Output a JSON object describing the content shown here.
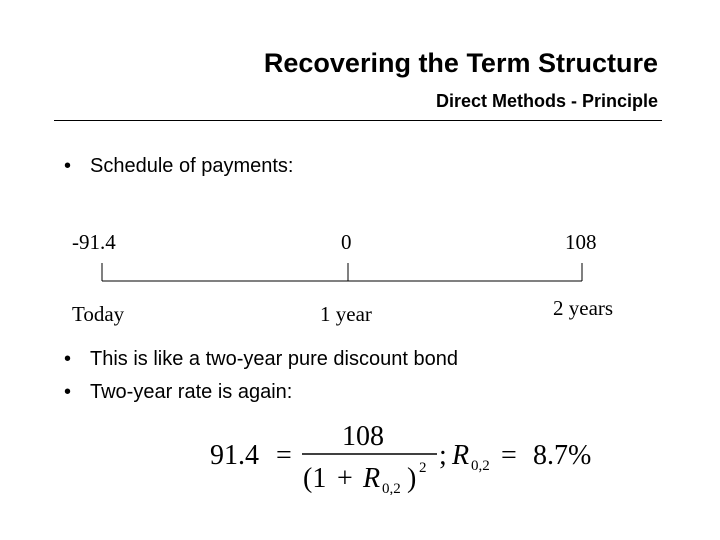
{
  "header": {
    "title": "Recovering the Term Structure",
    "subtitle": "Direct Methods - Principle"
  },
  "bullets_top": [
    {
      "text": "Schedule of payments:"
    }
  ],
  "timeline": {
    "payments": [
      "-91.4",
      "0",
      "108"
    ],
    "labels": [
      "Today",
      "1 year",
      "2 years"
    ]
  },
  "bullets_bottom": [
    {
      "text": "This is like a two-year pure discount bond"
    },
    {
      "text": "Two-year rate is again:"
    }
  ],
  "formula": {
    "lhs": "91.4",
    "eq": "=",
    "numerator": "108",
    "denominator_open": "(1",
    "denominator_plus": "+",
    "denominator_R": "R",
    "denominator_sub": "0,2",
    "denominator_close": ")",
    "denominator_exp": "2",
    "separator": ";",
    "rate_R": "R",
    "rate_sub": "0,2",
    "rate_eq": "=",
    "rate_value": "8.7%"
  }
}
